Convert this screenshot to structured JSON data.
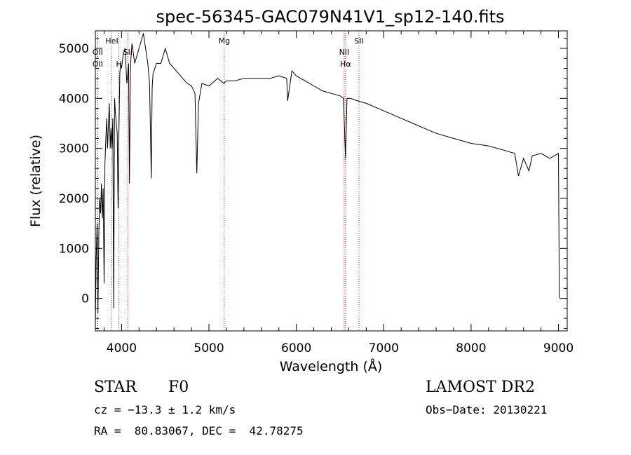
{
  "chart_data": {
    "type": "line",
    "title": "spec-56345-GAC079N41V1_sp12-140.fits",
    "xlabel": "Wavelength (Å)",
    "ylabel": "Flux (relative)",
    "xlim": [
      3700,
      9100
    ],
    "ylim": [
      -650,
      5350
    ],
    "x_ticks": [
      4000,
      5000,
      6000,
      7000,
      8000,
      9000
    ],
    "y_ticks": [
      0,
      1000,
      2000,
      3000,
      4000,
      5000
    ],
    "grid": false,
    "series": [
      {
        "x": [
          3700,
          3710,
          3720,
          3730,
          3740,
          3750,
          3760,
          3770,
          3780,
          3790,
          3800,
          3810,
          3820,
          3830,
          3840,
          3850,
          3860,
          3870,
          3880,
          3890,
          3900,
          3910,
          3920,
          3930,
          3940,
          3950,
          3960,
          3970,
          3980,
          3990,
          4000,
          4020,
          4040,
          4060,
          4080,
          4090,
          4100,
          4110,
          4120,
          4150,
          4200,
          4250,
          4300,
          4320,
          4340,
          4350,
          4360,
          4400,
          4450,
          4500,
          4550,
          4600,
          4650,
          4700,
          4750,
          4800,
          4840,
          4861,
          4880,
          4920,
          5000,
          5100,
          5170,
          5200,
          5300,
          5400,
          5500,
          5600,
          5700,
          5800,
          5890,
          5900,
          5950,
          6000,
          6100,
          6200,
          6300,
          6400,
          6500,
          6540,
          6563,
          6580,
          6620,
          6700,
          6800,
          7000,
          7200,
          7400,
          7600,
          7800,
          8000,
          8200,
          8400,
          8500,
          8542,
          8600,
          8662,
          8700,
          8800,
          8900,
          9000,
          9010
        ],
        "values": [
          -500,
          800,
          1500,
          -300,
          1300,
          2000,
          1700,
          2300,
          1600,
          2200,
          300,
          2700,
          3200,
          3600,
          3000,
          3500,
          3900,
          3000,
          3400,
          3000,
          3600,
          -200,
          4000,
          3700,
          3500,
          3300,
          1800,
          3400,
          4500,
          4700,
          4600,
          4900,
          5000,
          4300,
          4700,
          2300,
          4500,
          4900,
          5100,
          4700,
          5000,
          5300,
          4700,
          4300,
          2400,
          4200,
          4500,
          4700,
          4700,
          5000,
          4700,
          4600,
          4500,
          4400,
          4300,
          4250,
          4100,
          2500,
          3900,
          4300,
          4250,
          4400,
          4300,
          4350,
          4350,
          4400,
          4400,
          4400,
          4400,
          4450,
          4400,
          3950,
          4550,
          4450,
          4350,
          4250,
          4150,
          4100,
          4050,
          4000,
          2800,
          4000,
          4000,
          3950,
          3900,
          3750,
          3600,
          3450,
          3300,
          3200,
          3100,
          3050,
          2950,
          2900,
          2450,
          2800,
          2550,
          2850,
          2900,
          2800,
          2900,
          0
        ]
      }
    ],
    "line_color": "#000000",
    "marker_color": "#b22222",
    "line_markers": [
      {
        "x": 3727,
        "label": "OII",
        "row": 2
      },
      {
        "x": 3727,
        "label": "OII",
        "row": 3
      },
      {
        "x": 3889,
        "label": "HeI",
        "row": 1
      },
      {
        "x": 3969,
        "label": "H",
        "row": 3
      },
      {
        "x": 4072,
        "label": "SII",
        "row": 2
      },
      {
        "x": 5175,
        "label": "Mg",
        "row": 1
      },
      {
        "x": 6548,
        "label": "NII",
        "row": 2
      },
      {
        "x": 6563,
        "label": "Hα",
        "row": 3
      },
      {
        "x": 6717,
        "label": "SII",
        "row": 1
      }
    ]
  },
  "info": {
    "class": "STAR",
    "subclass": "F0",
    "survey": "LAMOST DR2",
    "cz": "cz = −13.3 ± 1.2 km/s",
    "obs_date": "Obs−Date: 20130221",
    "coords": "RA =  80.83067, DEC =  42.78275"
  }
}
